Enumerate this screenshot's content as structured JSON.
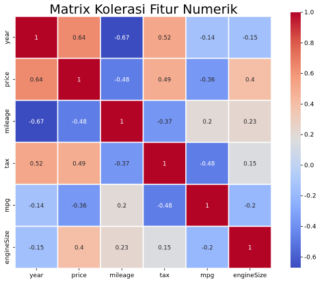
{
  "chart_data": {
    "type": "heatmap",
    "title": "Matrix Kolerasi Fitur Numerik",
    "xlabel": "",
    "ylabel": "",
    "row_labels": [
      "year",
      "price",
      "mileage",
      "tax",
      "mpg",
      "engineSize"
    ],
    "col_labels": [
      "year",
      "price",
      "mileage",
      "tax",
      "mpg",
      "engineSize"
    ],
    "values": [
      [
        1,
        0.64,
        -0.67,
        0.52,
        -0.14,
        -0.15
      ],
      [
        0.64,
        1,
        -0.48,
        0.49,
        -0.36,
        0.4
      ],
      [
        -0.67,
        -0.48,
        1,
        -0.37,
        0.2,
        0.23
      ],
      [
        0.52,
        0.49,
        -0.37,
        1,
        -0.48,
        0.15
      ],
      [
        -0.14,
        -0.36,
        0.2,
        -0.48,
        1,
        -0.2
      ],
      [
        -0.15,
        0.4,
        0.23,
        0.15,
        -0.2,
        1
      ]
    ],
    "cell_text": [
      [
        "1",
        "0.64",
        "-0.67",
        "0.52",
        "-0.14",
        "-0.15"
      ],
      [
        "0.64",
        "1",
        "-0.48",
        "0.49",
        "-0.36",
        "0.4"
      ],
      [
        "-0.67",
        "-0.48",
        "1",
        "-0.37",
        "0.2",
        "0.23"
      ],
      [
        "0.52",
        "0.49",
        "-0.37",
        "1",
        "-0.48",
        "0.15"
      ],
      [
        "-0.14",
        "-0.36",
        "0.2",
        "-0.48",
        "1",
        "-0.2"
      ],
      [
        "-0.15",
        "0.4",
        "0.23",
        "0.15",
        "-0.2",
        "1"
      ]
    ],
    "colormap": "coolwarm",
    "vmin": -0.67,
    "vmax": 1,
    "colorbar_ticks": [
      "1.0",
      "0.8",
      "0.6",
      "0.4",
      "0.2",
      "0.0",
      "-0.2",
      "-0.4",
      "-0.6"
    ],
    "colorbar_values": [
      1.0,
      0.8,
      0.6,
      0.4,
      0.2,
      0.0,
      -0.2,
      -0.4,
      -0.6
    ],
    "grid_lines": true,
    "grid_color": "#ffffff",
    "colorbar_placement": "right"
  }
}
